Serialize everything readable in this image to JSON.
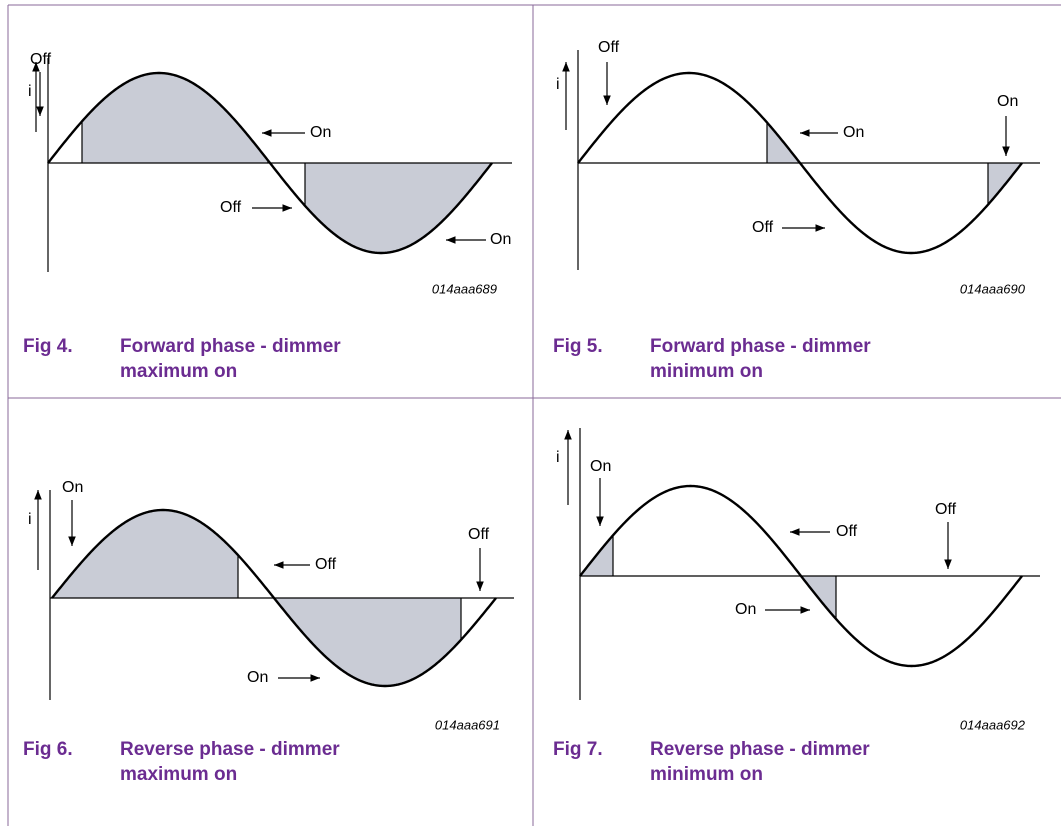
{
  "panels": [
    {
      "code": "014aaa689",
      "fig_label": "Fig 4.",
      "caption": "Forward phase - dimmer maximum on",
      "axis_label": "i",
      "annotations": [
        "Off",
        "On",
        "Off",
        "On"
      ]
    },
    {
      "code": "014aaa690",
      "fig_label": "Fig 5.",
      "caption": "Forward phase - dimmer minimum on",
      "axis_label": "i",
      "annotations": [
        "Off",
        "On",
        "On",
        "Off"
      ]
    },
    {
      "code": "014aaa691",
      "fig_label": "Fig 6.",
      "caption": "Reverse phase - dimmer maximum on",
      "axis_label": "i",
      "annotations": [
        "On",
        "Off",
        "Off",
        "On"
      ]
    },
    {
      "code": "014aaa692",
      "fig_label": "Fig 7.",
      "caption": "Reverse phase - dimmer minimum on",
      "axis_label": "i",
      "annotations": [
        "On",
        "Off",
        "Off",
        "On"
      ]
    }
  ]
}
